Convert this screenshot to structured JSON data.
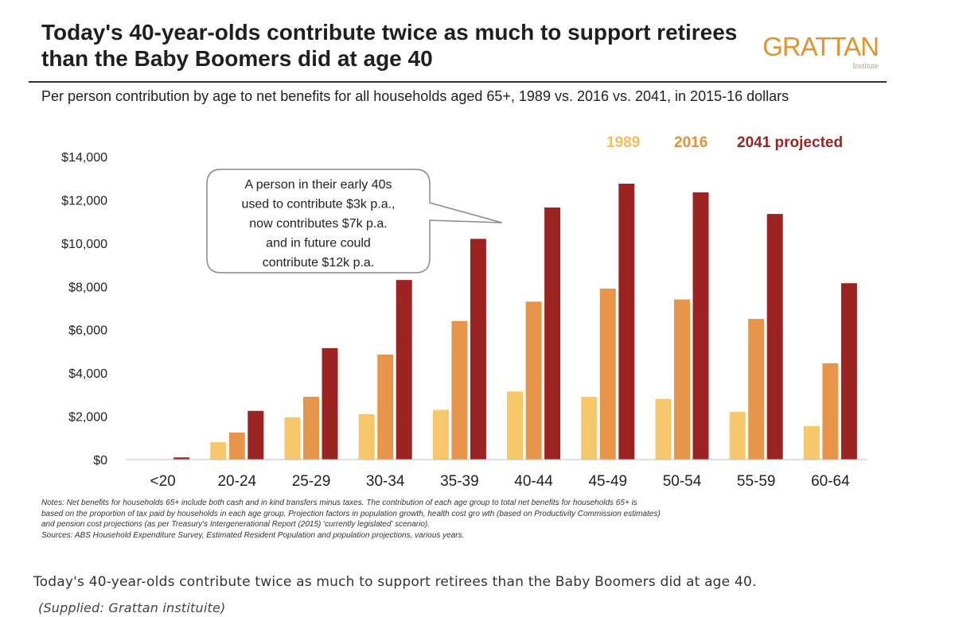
{
  "chart_data": {
    "type": "bar",
    "title": "Today's 40-year-olds contribute twice as much to support retirees than the Baby Boomers did at age 40",
    "subtitle": "Per person contribution by age to net benefits for all households aged 65+, 1989 vs. 2016 vs. 2041, in 2015-16 dollars",
    "xlabel": "",
    "ylabel": "",
    "ylim": [
      0,
      14000
    ],
    "y_ticks": [
      {
        "value": 0,
        "label": "$0"
      },
      {
        "value": 2000,
        "label": "$2,000"
      },
      {
        "value": 4000,
        "label": "$4,000"
      },
      {
        "value": 6000,
        "label": "$6,000"
      },
      {
        "value": 8000,
        "label": "$8,000"
      },
      {
        "value": 10000,
        "label": "$10,000"
      },
      {
        "value": 12000,
        "label": "$12,000"
      },
      {
        "value": 14000,
        "label": "$14,000"
      }
    ],
    "grid": false,
    "legend_position": "top-right",
    "categories": [
      "<20",
      "20-24",
      "25-29",
      "30-34",
      "35-39",
      "40-44",
      "45-49",
      "50-54",
      "55-59",
      "60-64"
    ],
    "series": [
      {
        "name": "1989",
        "color": "#f7c86b",
        "values": [
          0,
          800,
          1950,
          2100,
          2300,
          3150,
          2900,
          2800,
          2200,
          1550
        ]
      },
      {
        "name": "2016",
        "color": "#e6954a",
        "values": [
          0,
          1250,
          2900,
          4850,
          6400,
          7300,
          7900,
          7400,
          6500,
          4450
        ]
      },
      {
        "name": "2041 projected",
        "color": "#9b2423",
        "values": [
          100,
          2250,
          5150,
          8300,
          10200,
          11650,
          12750,
          12350,
          11350,
          8150
        ]
      }
    ],
    "annotation": {
      "lines": [
        "A person in their early 40s",
        "used to contribute $3k p.a.,",
        "now contributes $7k p.a.",
        "and in future could",
        "contribute $12k p.a."
      ],
      "points_to_category": "40-44"
    }
  },
  "logo": {
    "word": "GRATTAN",
    "sub": "Institute"
  },
  "notes": {
    "line1": "Notes: Net benefits for households 65+ include both cash and in kind transfers minus taxes. The contribution of each age group to total net benefits for households 65+ is",
    "line2": "based on the proportion of tax paid by households in each age group. Projection factors in population growth, health cost gro wth (based on Productivity Commission estimates)",
    "line3": "and pension cost projections (as per Treasury's Intergenerational Report (2015) 'currently legislated' scenario).",
    "line4": "Sources: ABS Household Expenditure Survey, Estimated Resident Population and population projections, various years."
  },
  "caption": "Today's 40-year-olds contribute twice as much to support retirees than the Baby Boomers did at age 40.",
  "credit": "(Supplied: Grattan instituite)"
}
